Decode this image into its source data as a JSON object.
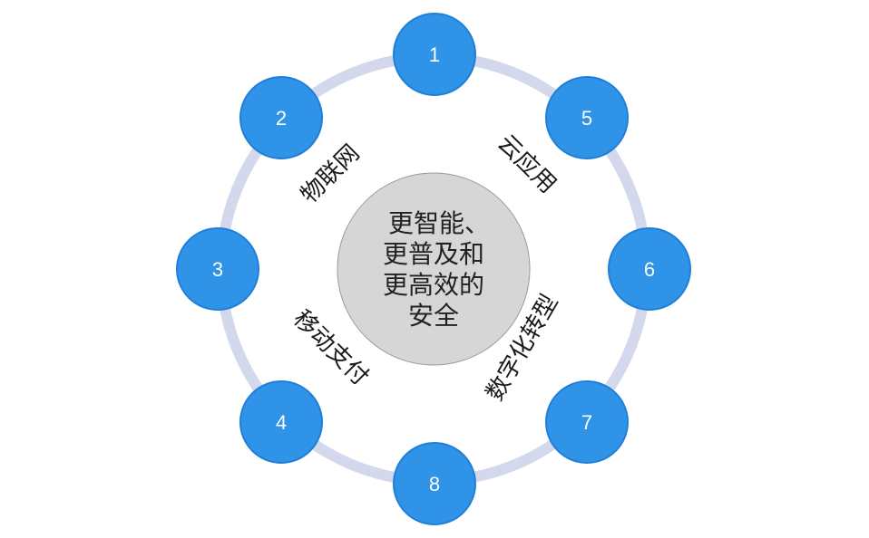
{
  "diagram": {
    "center": {
      "lines": [
        "更智能、",
        "更普及和",
        "更高效的",
        "安全"
      ]
    },
    "nodes": [
      {
        "id": "1",
        "label": "1"
      },
      {
        "id": "2",
        "label": "2"
      },
      {
        "id": "3",
        "label": "3"
      },
      {
        "id": "4",
        "label": "4"
      },
      {
        "id": "5",
        "label": "5"
      },
      {
        "id": "6",
        "label": "6"
      },
      {
        "id": "7",
        "label": "7"
      },
      {
        "id": "8",
        "label": "8"
      }
    ],
    "segments": {
      "iot": "物联网",
      "mobile_pay": "移动支付",
      "cloud_app": "云应用",
      "digital_transform": "数字化转型"
    },
    "colors": {
      "node_fill": "#2f93e8",
      "node_stroke": "#1f7fd8",
      "ring": "#d3d8ec",
      "center_fill": "#d6d6d6",
      "center_stroke": "#9a9a9a"
    }
  }
}
